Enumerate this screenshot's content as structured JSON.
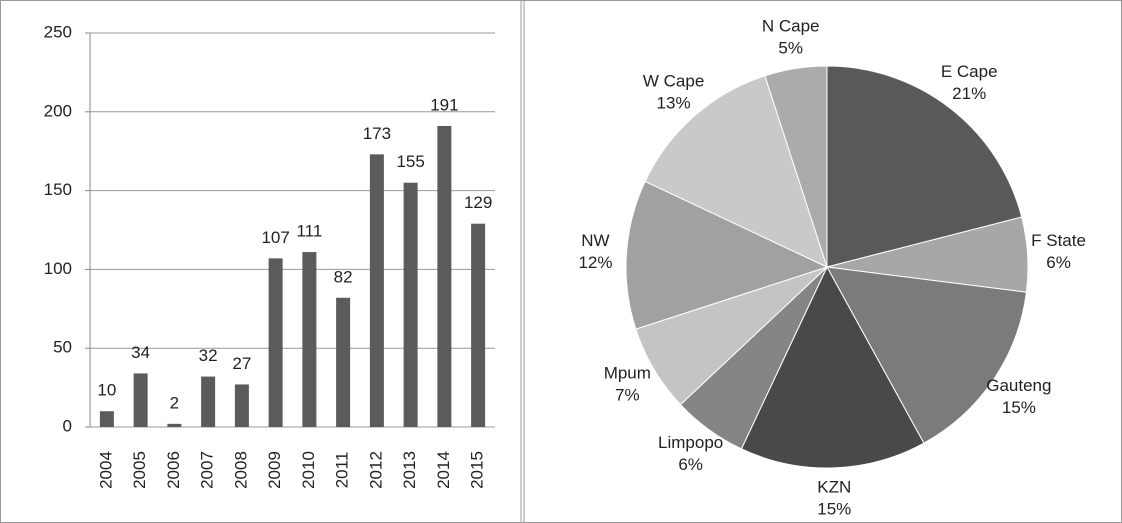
{
  "chart_data": [
    {
      "type": "bar",
      "categories": [
        "2004",
        "2005",
        "2006",
        "2007",
        "2008",
        "2009",
        "2010",
        "2011",
        "2012",
        "2013",
        "2014",
        "2015"
      ],
      "values": [
        10,
        34,
        2,
        32,
        27,
        107,
        111,
        82,
        173,
        155,
        191,
        129
      ],
      "color": "#5b5b5b",
      "ylim": [
        0,
        250
      ],
      "yticks": [
        0,
        50,
        100,
        150,
        200,
        250
      ],
      "grid": true
    },
    {
      "type": "pie",
      "categories": [
        "E Cape",
        "F State",
        "Gauteng",
        "KZN",
        "Limpopo",
        "Mpum",
        "NW",
        "W Cape",
        "N Cape"
      ],
      "values": [
        21,
        6,
        15,
        15,
        6,
        7,
        12,
        13,
        5
      ],
      "value_labels": [
        "21%",
        "6%",
        "15%",
        "15%",
        "6%",
        "7%",
        "12%",
        "13%",
        "5%"
      ],
      "colors": [
        "#58595b",
        "#a6a7a9",
        "#7a7b7d",
        "#48494b",
        "#848587",
        "#c3c4c6",
        "#a0a1a3",
        "#c8c9cb",
        "#aaabad"
      ]
    }
  ]
}
